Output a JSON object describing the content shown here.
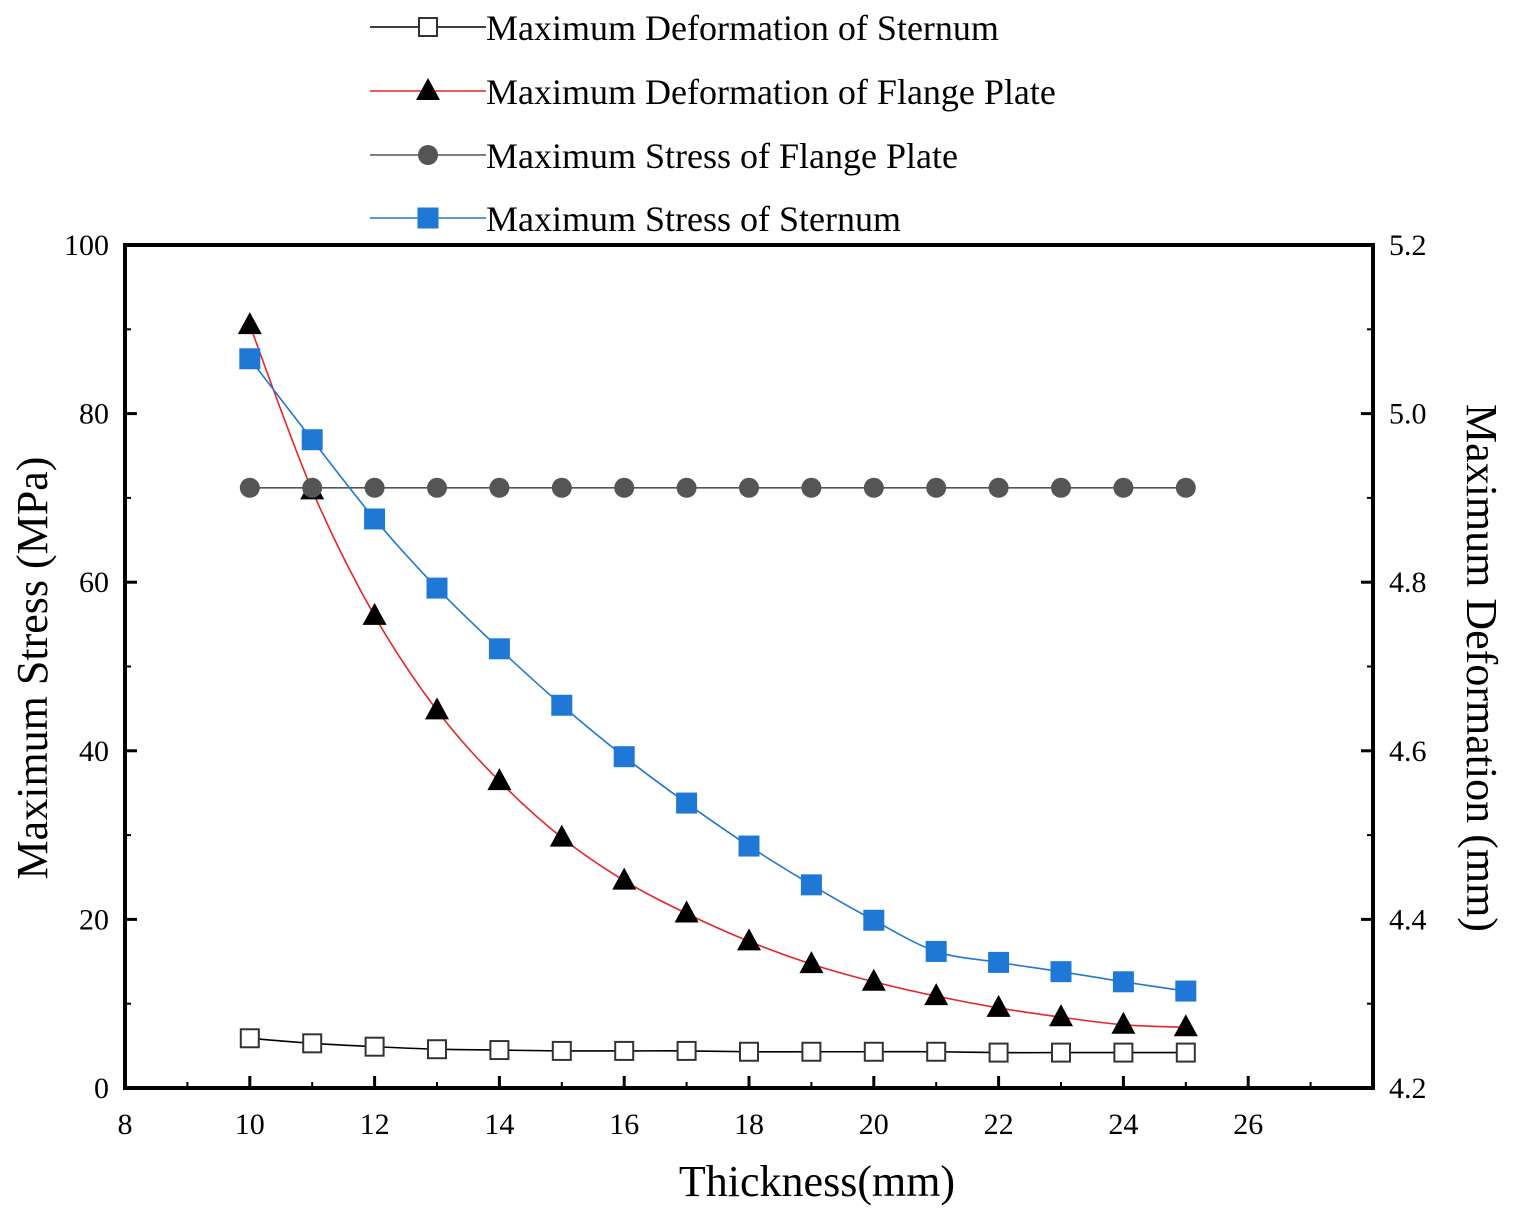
{
  "chart_data": {
    "type": "line",
    "xlabel": "Thickness(mm)",
    "ylabel_left": "Maximum Stress (MPa)",
    "ylabel_right": "Maximum Deformation (mm)",
    "xlim": [
      8,
      28
    ],
    "ylim_left": [
      0,
      100
    ],
    "ylim_right": [
      4.2,
      5.2
    ],
    "x_ticks": [
      8,
      10,
      12,
      14,
      16,
      18,
      20,
      22,
      24,
      26
    ],
    "y_left_ticks": [
      0,
      20,
      40,
      60,
      80,
      100
    ],
    "y_right_ticks": [
      "4.2",
      "4.4",
      "4.6",
      "4.8",
      "5.0",
      "5.2"
    ],
    "legend_position": "top-center",
    "x": [
      10,
      11,
      12,
      13,
      14,
      15,
      16,
      17,
      18,
      19,
      20,
      21,
      22,
      23,
      24,
      25
    ],
    "series": [
      {
        "name": "Maximum Deformation of Sternum",
        "axis": "right",
        "marker": "square-open",
        "color": "#000000",
        "values": [
          4.259,
          4.253,
          4.249,
          4.246,
          4.245,
          4.244,
          4.244,
          4.244,
          4.243,
          4.243,
          4.243,
          4.243,
          4.242,
          4.242,
          4.242,
          4.242
        ]
      },
      {
        "name": "Maximum Deformation of Flange Plate",
        "axis": "right",
        "marker": "triangle",
        "color": "#e8242b",
        "marker_color": "#000000",
        "values": [
          5.105,
          4.909,
          4.76,
          4.648,
          4.564,
          4.497,
          4.446,
          4.407,
          4.374,
          4.347,
          4.326,
          4.309,
          4.295,
          4.284,
          4.275,
          4.272
        ]
      },
      {
        "name": "Maximum Stress of Flange Plate",
        "axis": "left",
        "marker": "circle",
        "color": "#555555",
        "values": [
          71.2,
          71.2,
          71.2,
          71.2,
          71.2,
          71.2,
          71.2,
          71.2,
          71.2,
          71.2,
          71.2,
          71.2,
          71.2,
          71.2,
          71.2,
          71.2
        ]
      },
      {
        "name": "Maximum Stress of Sternum",
        "axis": "left",
        "marker": "square",
        "color": "#1f78d6",
        "values": [
          86.5,
          76.9,
          67.5,
          59.3,
          52.1,
          45.4,
          39.3,
          33.8,
          28.7,
          24.1,
          19.9,
          16.2,
          14.9,
          13.8,
          12.6,
          11.5
        ]
      }
    ]
  }
}
